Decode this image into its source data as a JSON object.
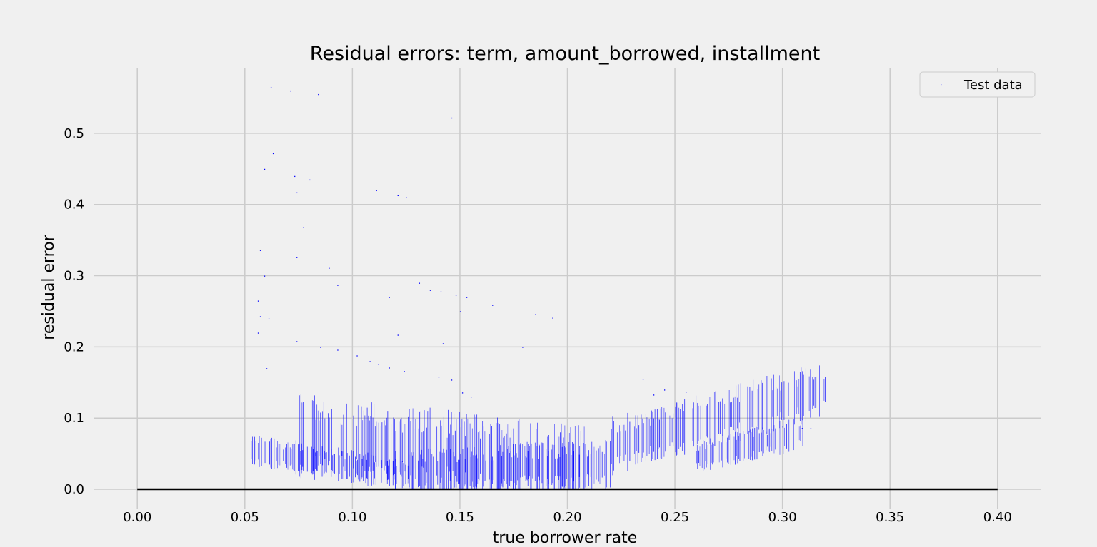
{
  "chart_data": {
    "type": "scatter",
    "title": "Residual errors: term, amount_borrowed, installment",
    "xlabel": "true borrower rate",
    "ylabel": "residual error",
    "xlim": [
      -0.02,
      0.42
    ],
    "ylim": [
      -0.028,
      0.592
    ],
    "x_ticks": [
      "0.00",
      "0.05",
      "0.10",
      "0.15",
      "0.20",
      "0.25",
      "0.30",
      "0.35",
      "0.40"
    ],
    "y_ticks": [
      "0.0",
      "0.1",
      "0.2",
      "0.3",
      "0.4",
      "0.5"
    ],
    "grid": true,
    "legend": {
      "position": "top-right",
      "entries": [
        "Test data"
      ]
    },
    "colors": {
      "points": "#0000ff",
      "reference_line": "#000000",
      "background": "#f0f0f0",
      "grid": "#cbcbcb"
    },
    "reference_line": {
      "y": 0.0,
      "x_range": [
        0.0,
        0.4
      ]
    },
    "series": [
      {
        "name": "Test data",
        "marker": "pixel",
        "bands": [
          {
            "x_range": [
              0.053,
              0.12
            ],
            "y_center_start": 0.055,
            "y_center_end": 0.022,
            "half_width": 0.02
          },
          {
            "x_range": [
              0.075,
              0.21
            ],
            "y_center_start": 0.075,
            "y_center_end": 0.03,
            "half_width": 0.05
          },
          {
            "x_range": [
              0.12,
              0.22
            ],
            "y_center_start": 0.02,
            "y_center_end": 0.035,
            "half_width": 0.03
          },
          {
            "x_range": [
              0.22,
              0.32
            ],
            "y_center_start": 0.06,
            "y_center_end": 0.14,
            "half_width": 0.035
          },
          {
            "x_range": [
              0.26,
              0.31
            ],
            "y_center_start": 0.045,
            "y_center_end": 0.08,
            "half_width": 0.02
          }
        ],
        "outliers": [
          [
            0.062,
            0.565
          ],
          [
            0.071,
            0.56
          ],
          [
            0.084,
            0.555
          ],
          [
            0.146,
            0.522
          ],
          [
            0.063,
            0.472
          ],
          [
            0.059,
            0.45
          ],
          [
            0.073,
            0.44
          ],
          [
            0.08,
            0.435
          ],
          [
            0.074,
            0.417
          ],
          [
            0.111,
            0.42
          ],
          [
            0.121,
            0.413
          ],
          [
            0.125,
            0.41
          ],
          [
            0.077,
            0.368
          ],
          [
            0.057,
            0.336
          ],
          [
            0.074,
            0.326
          ],
          [
            0.089,
            0.311
          ],
          [
            0.059,
            0.3
          ],
          [
            0.093,
            0.287
          ],
          [
            0.117,
            0.27
          ],
          [
            0.131,
            0.29
          ],
          [
            0.136,
            0.28
          ],
          [
            0.141,
            0.278
          ],
          [
            0.148,
            0.273
          ],
          [
            0.153,
            0.27
          ],
          [
            0.165,
            0.259
          ],
          [
            0.185,
            0.246
          ],
          [
            0.193,
            0.241
          ],
          [
            0.056,
            0.265
          ],
          [
            0.057,
            0.243
          ],
          [
            0.061,
            0.24
          ],
          [
            0.15,
            0.25
          ],
          [
            0.121,
            0.217
          ],
          [
            0.056,
            0.22
          ],
          [
            0.074,
            0.208
          ],
          [
            0.085,
            0.2
          ],
          [
            0.093,
            0.196
          ],
          [
            0.102,
            0.188
          ],
          [
            0.108,
            0.18
          ],
          [
            0.112,
            0.176
          ],
          [
            0.117,
            0.171
          ],
          [
            0.124,
            0.166
          ],
          [
            0.14,
            0.158
          ],
          [
            0.146,
            0.154
          ],
          [
            0.151,
            0.136
          ],
          [
            0.155,
            0.13
          ],
          [
            0.179,
            0.2
          ],
          [
            0.142,
            0.205
          ],
          [
            0.06,
            0.17
          ],
          [
            0.235,
            0.155
          ],
          [
            0.24,
            0.133
          ],
          [
            0.245,
            0.14
          ],
          [
            0.255,
            0.137
          ],
          [
            0.3,
            0.088
          ],
          [
            0.309,
            0.086
          ],
          [
            0.313,
            0.086
          ]
        ]
      }
    ]
  }
}
